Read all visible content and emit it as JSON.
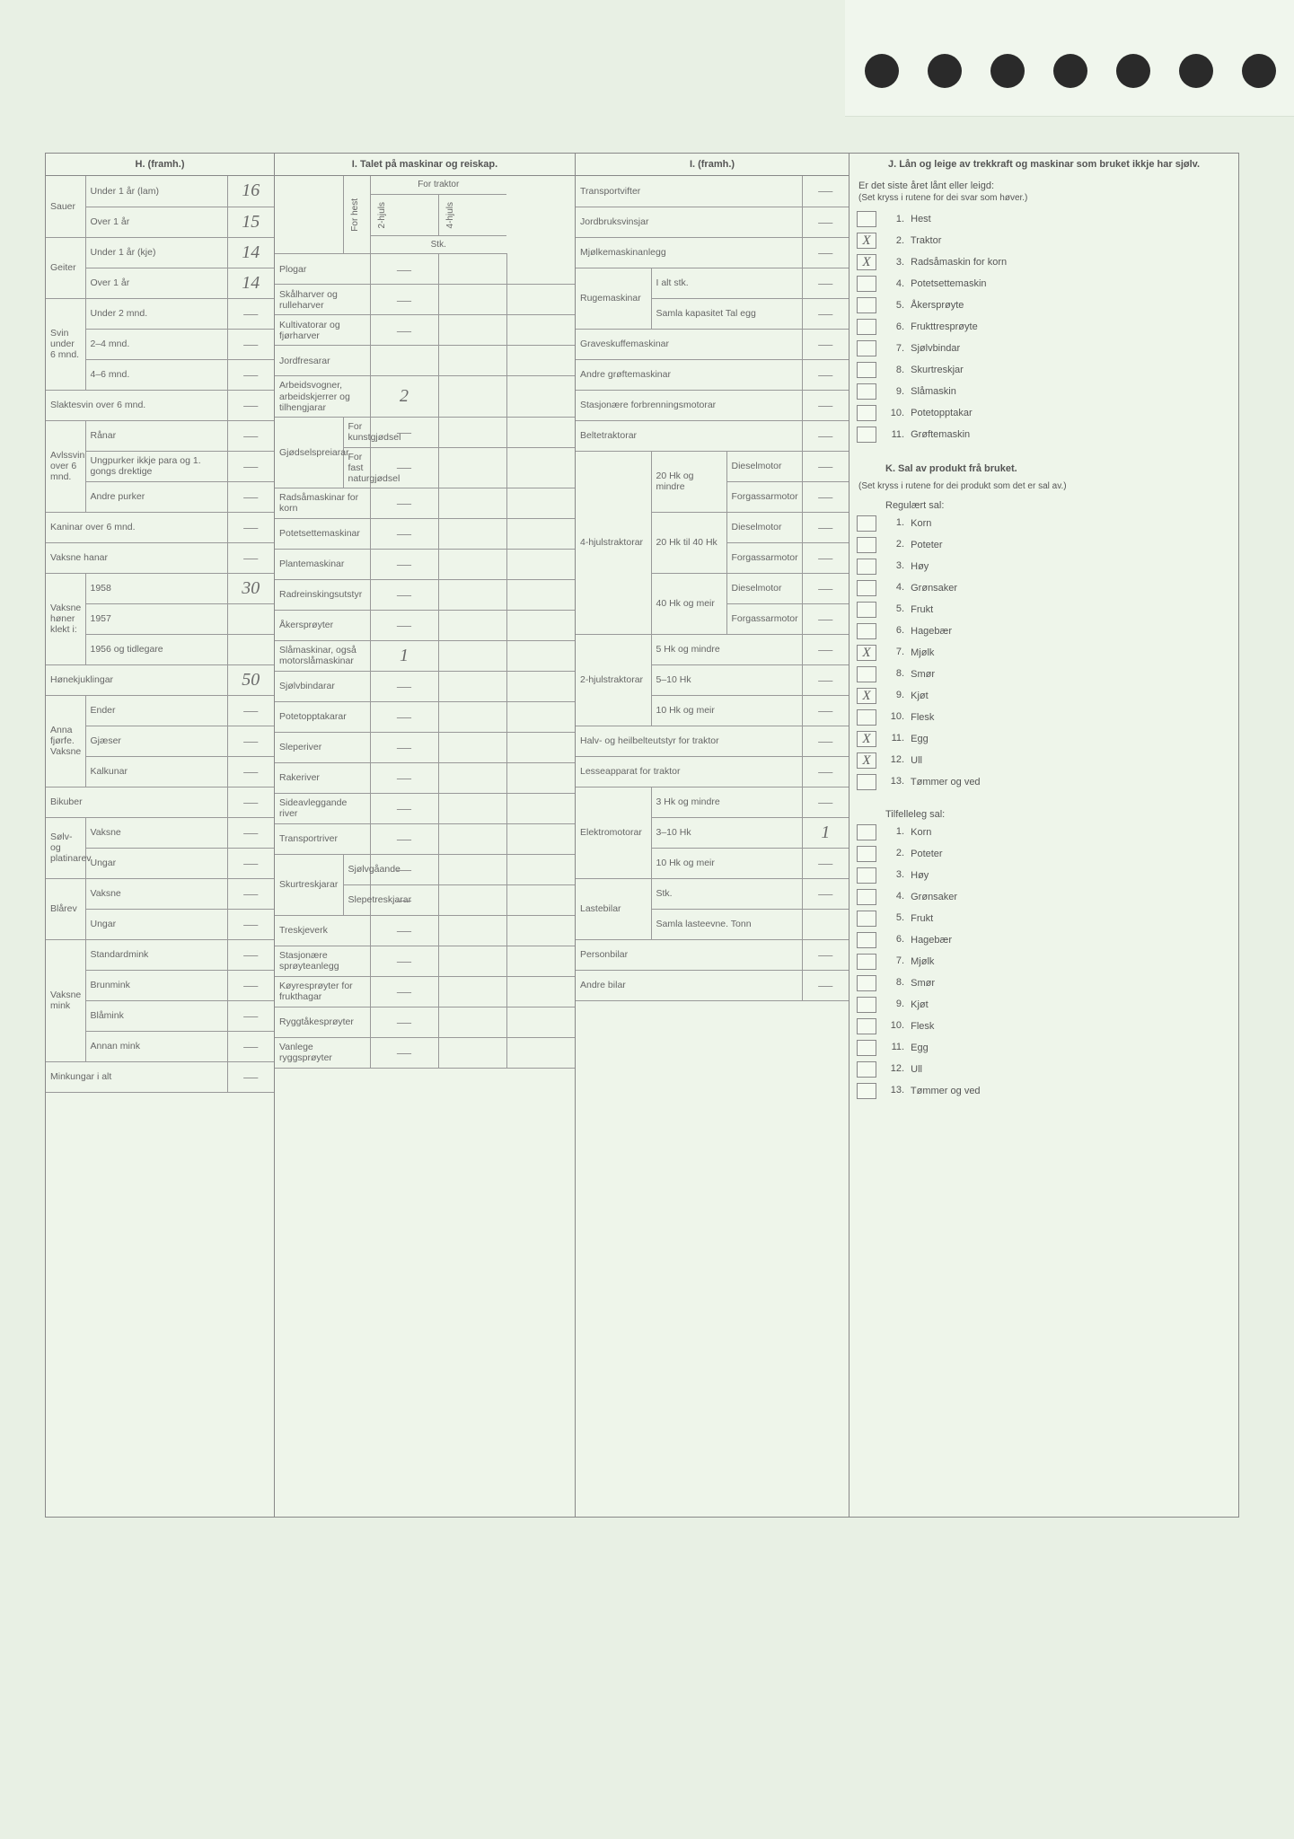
{
  "background_color": "#e8f0e4",
  "form_bg": "#eef5ea",
  "border_color": "#888888",
  "text_color": "#555555",
  "handwriting_color": "#6a6a6a",
  "H": {
    "title": "H. (framh.)",
    "groups": [
      {
        "lbl": "Sauer",
        "rows": [
          {
            "l": "Under 1 år (lam)",
            "v": "16"
          },
          {
            "l": "Over 1 år",
            "v": "15"
          }
        ]
      },
      {
        "lbl": "Geiter",
        "rows": [
          {
            "l": "Under 1 år (kje)",
            "v": "14"
          },
          {
            "l": "Over 1 år",
            "v": "14"
          }
        ]
      },
      {
        "lbl": "Svin under 6 mnd.",
        "rows": [
          {
            "l": "Under 2 mnd.",
            "v": "—"
          },
          {
            "l": "2–4 mnd.",
            "v": "—"
          },
          {
            "l": "4–6 mnd.",
            "v": "—"
          }
        ]
      }
    ],
    "slaktesvin": {
      "l": "Slaktesvin over 6 mnd.",
      "v": "—"
    },
    "avlssvin": {
      "lbl": "Avlssvin over 6 mnd.",
      "rows": [
        {
          "l": "Rånar",
          "v": "—"
        },
        {
          "l": "Ungpurker ikkje para og 1. gongs drektige",
          "v": "—"
        },
        {
          "l": "Andre purker",
          "v": "—"
        }
      ]
    },
    "kaninar": {
      "l": "Kaninar over 6 mnd.",
      "v": "—"
    },
    "vaksnehanar": {
      "l": "Vaksne hanar",
      "v": "—"
    },
    "voksner": {
      "lbl": "Vaksne høner klekt i:",
      "rows": [
        {
          "l": "1958",
          "v": "30"
        },
        {
          "l": "1957",
          "v": ""
        },
        {
          "l": "1956 og tidlegare",
          "v": ""
        }
      ]
    },
    "honekj": {
      "l": "Hønekjuklingar",
      "v": "50"
    },
    "annafj": {
      "lbl": "Anna fjørfe. Vaksne",
      "rows": [
        {
          "l": "Ender",
          "v": "—"
        },
        {
          "l": "Gjæser",
          "v": "—"
        },
        {
          "l": "Kalkunar",
          "v": "—"
        }
      ]
    },
    "bikuber": {
      "l": "Bikuber",
      "v": "—"
    },
    "solvrev": {
      "lbl": "Sølv- og platinarev",
      "rows": [
        {
          "l": "Vaksne",
          "v": "—"
        },
        {
          "l": "Ungar",
          "v": "—"
        }
      ]
    },
    "blarev": {
      "lbl": "Blårev",
      "rows": [
        {
          "l": "Vaksne",
          "v": "—"
        },
        {
          "l": "Ungar",
          "v": "—"
        }
      ]
    },
    "mink": {
      "lbl": "Vaksne mink",
      "rows": [
        {
          "l": "Standardmink",
          "v": "—"
        },
        {
          "l": "Brunmink",
          "v": "—"
        },
        {
          "l": "Blåmink",
          "v": "—"
        },
        {
          "l": "Annan mink",
          "v": "—"
        }
      ]
    },
    "minkungar": {
      "l": "Minkungar i alt",
      "v": "—"
    }
  },
  "I1": {
    "title": "I. Talet på maskinar og reiskap.",
    "headers": {
      "forhest": "For hest",
      "traktor": "For traktor",
      "h2": "2-hjuls",
      "h4": "4-hjuls",
      "stk": "Stk."
    },
    "rows": [
      {
        "l": "Plogar",
        "a": "—"
      },
      {
        "l": "Skålharver og rulleharver",
        "a": "—"
      },
      {
        "l": "Kultivatorar og fjørharver",
        "a": "—"
      },
      {
        "l": "Jordfresarar",
        "a": ""
      },
      {
        "l": "Arbeidsvogner, arbeidskjerrer og tilhengjarar",
        "a": "2"
      },
      {
        "sub": "Gjødselspreiarar",
        "l": "For kunstgjødsel",
        "a": "—"
      },
      {
        "sub": "",
        "l": "For fast naturgjødsel",
        "a": "—"
      },
      {
        "l": "Radsåmaskinar for korn",
        "a": "—"
      },
      {
        "l": "Potetsettemaskinar",
        "a": "—"
      },
      {
        "l": "Plantemaskinar",
        "a": "—"
      },
      {
        "l": "Radreinskingsutstyr",
        "a": "—"
      },
      {
        "l": "Åkersprøyter",
        "a": "—"
      },
      {
        "l": "Slåmaskinar, også motorslåmaskinar",
        "a": "1"
      },
      {
        "l": "Sjølvbindarar",
        "a": "—"
      },
      {
        "l": "Potetopptakarar",
        "a": "—"
      },
      {
        "l": "Sleperiver",
        "a": "—"
      },
      {
        "l": "Rakeriver",
        "a": "—"
      },
      {
        "l": "Sideavleggande river",
        "a": "—"
      },
      {
        "l": "Transportriver",
        "a": "—"
      },
      {
        "sub": "Skurtreskjarar",
        "l": "Sjølvgåande",
        "a": "—"
      },
      {
        "sub": "",
        "l": "Slepetreskjarar",
        "a": "—"
      },
      {
        "l": "Treskjeverk",
        "a": "—"
      },
      {
        "l": "Stasjonære sprøyteanlegg",
        "a": "—"
      },
      {
        "l": "Køyresprøyter for frukthagar",
        "a": "—"
      },
      {
        "l": "Ryggtåkesprøyter",
        "a": "—"
      },
      {
        "l": "Vanlege ryggsprøyter",
        "a": "—"
      }
    ]
  },
  "I2": {
    "title": "I. (framh.)",
    "simple": [
      {
        "l": "Transportvifter",
        "v": "—"
      },
      {
        "l": "Jordbruksvinsjar",
        "v": "—"
      },
      {
        "l": "Mjølkemaskinanlegg",
        "v": "—"
      }
    ],
    "ruge": {
      "lbl": "Rugemaskinar",
      "rows": [
        {
          "l": "I alt stk.",
          "v": "—"
        },
        {
          "l": "Samla kapasitet Tal egg",
          "v": "—"
        }
      ]
    },
    "more": [
      {
        "l": "Graveskuffemaskinar",
        "v": "—"
      },
      {
        "l": "Andre grøftemaskinar",
        "v": "—"
      },
      {
        "l": "Stasjonære forbrenningsmotorar",
        "v": "—"
      },
      {
        "l": "Beltetraktorar",
        "v": "—"
      }
    ],
    "hjuls4": {
      "lbl": "4-hjulstraktorar",
      "groups": [
        {
          "g": "20 Hk og mindre",
          "rows": [
            {
              "l": "Dieselmotor",
              "v": "—"
            },
            {
              "l": "Forgassarmotor",
              "v": "—"
            }
          ]
        },
        {
          "g": "20 Hk til 40 Hk",
          "rows": [
            {
              "l": "Dieselmotor",
              "v": "—"
            },
            {
              "l": "Forgassarmotor",
              "v": "—"
            }
          ]
        },
        {
          "g": "40 Hk og meir",
          "rows": [
            {
              "l": "Dieselmotor",
              "v": "—"
            },
            {
              "l": "Forgassarmotor",
              "v": "—"
            }
          ]
        }
      ]
    },
    "hjuls2": {
      "lbl": "2-hjulstraktorar",
      "rows": [
        {
          "l": "5 Hk og mindre",
          "v": "—"
        },
        {
          "l": "5–10 Hk",
          "v": "—"
        },
        {
          "l": "10 Hk og meir",
          "v": "—"
        }
      ]
    },
    "halv": {
      "l": "Halv- og heilbelteutstyr for traktor",
      "v": "—"
    },
    "lesse": {
      "l": "Lesseapparat for traktor",
      "v": "—"
    },
    "elektro": {
      "lbl": "Elektromotorar",
      "rows": [
        {
          "l": "3 Hk og mindre",
          "v": "—"
        },
        {
          "l": "3–10 Hk",
          "v": "1"
        },
        {
          "l": "10 Hk og meir",
          "v": "—"
        }
      ]
    },
    "laste": {
      "lbl": "Lastebilar",
      "rows": [
        {
          "l": "Stk.",
          "v": "—"
        },
        {
          "l": "Samla lasteevne. Tonn",
          "v": ""
        }
      ]
    },
    "person": {
      "l": "Personbilar",
      "v": "—"
    },
    "andre": {
      "l": "Andre bilar",
      "v": "—"
    }
  },
  "J": {
    "title": "J. Lån og leige av trekkraft og maskinar som bruket ikkje har sjølv.",
    "sub": "Er det siste året lånt eller leigd:",
    "note": "(Set kryss i rutene for dei svar som høver.)",
    "items": [
      {
        "n": "1.",
        "l": "Hest",
        "c": ""
      },
      {
        "n": "2.",
        "l": "Traktor",
        "c": "X"
      },
      {
        "n": "3.",
        "l": "Radsåmaskin for korn",
        "c": "X"
      },
      {
        "n": "4.",
        "l": "Potetsettemaskin",
        "c": ""
      },
      {
        "n": "5.",
        "l": "Åkersprøyte",
        "c": ""
      },
      {
        "n": "6.",
        "l": "Frukttresprøyte",
        "c": ""
      },
      {
        "n": "7.",
        "l": "Sjølvbindar",
        "c": ""
      },
      {
        "n": "8.",
        "l": "Skurtreskjar",
        "c": ""
      },
      {
        "n": "9.",
        "l": "Slåmaskin",
        "c": ""
      },
      {
        "n": "10.",
        "l": "Potetopptakar",
        "c": ""
      },
      {
        "n": "11.",
        "l": "Grøftemaskin",
        "c": ""
      }
    ]
  },
  "K": {
    "title": "K. Sal av produkt frå bruket.",
    "note": "(Set kryss i rutene for dei produkt som det er sal av.)",
    "reg_title": "Regulært sal:",
    "reg": [
      {
        "n": "1.",
        "l": "Korn",
        "c": ""
      },
      {
        "n": "2.",
        "l": "Poteter",
        "c": ""
      },
      {
        "n": "3.",
        "l": "Høy",
        "c": ""
      },
      {
        "n": "4.",
        "l": "Grønsaker",
        "c": ""
      },
      {
        "n": "5.",
        "l": "Frukt",
        "c": ""
      },
      {
        "n": "6.",
        "l": "Hagebær",
        "c": ""
      },
      {
        "n": "7.",
        "l": "Mjølk",
        "c": "X"
      },
      {
        "n": "8.",
        "l": "Smør",
        "c": ""
      },
      {
        "n": "9.",
        "l": "Kjøt",
        "c": "X"
      },
      {
        "n": "10.",
        "l": "Flesk",
        "c": ""
      },
      {
        "n": "11.",
        "l": "Egg",
        "c": "X"
      },
      {
        "n": "12.",
        "l": "Ull",
        "c": "X"
      },
      {
        "n": "13.",
        "l": "Tømmer og ved",
        "c": ""
      }
    ],
    "til_title": "Tilfelleleg sal:",
    "til": [
      {
        "n": "1.",
        "l": "Korn",
        "c": ""
      },
      {
        "n": "2.",
        "l": "Poteter",
        "c": ""
      },
      {
        "n": "3.",
        "l": "Høy",
        "c": ""
      },
      {
        "n": "4.",
        "l": "Grønsaker",
        "c": ""
      },
      {
        "n": "5.",
        "l": "Frukt",
        "c": ""
      },
      {
        "n": "6.",
        "l": "Hagebær",
        "c": ""
      },
      {
        "n": "7.",
        "l": "Mjølk",
        "c": ""
      },
      {
        "n": "8.",
        "l": "Smør",
        "c": ""
      },
      {
        "n": "9.",
        "l": "Kjøt",
        "c": ""
      },
      {
        "n": "10.",
        "l": "Flesk",
        "c": ""
      },
      {
        "n": "11.",
        "l": "Egg",
        "c": ""
      },
      {
        "n": "12.",
        "l": "Ull",
        "c": ""
      },
      {
        "n": "13.",
        "l": "Tømmer og ved",
        "c": ""
      }
    ]
  }
}
